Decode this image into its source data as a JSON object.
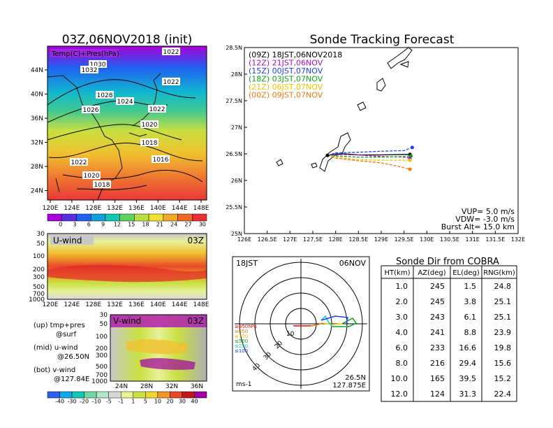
{
  "left_title": "03Z,06NOV2018 (init)",
  "map_label": "Temp(C)+Pres(hPa)",
  "map_xticks": [
    "120E",
    "124E",
    "128E",
    "132E",
    "136E",
    "140E",
    "144E",
    "148E"
  ],
  "map_yticks": [
    "44N",
    "40N",
    "36N",
    "32N",
    "28N",
    "24N"
  ],
  "isobars": [
    "1022",
    "1030",
    "1032",
    "1028",
    "1026",
    "1024",
    "1022",
    "1022",
    "1020",
    "1018",
    "1016",
    "1022",
    "1020",
    "1018"
  ],
  "temp_colorbar": [
    "0",
    "3",
    "6",
    "9",
    "12",
    "15",
    "18",
    "21",
    "24",
    "27",
    "30"
  ],
  "temp_colors": [
    "#a800d8",
    "#5a2ce0",
    "#2060f0",
    "#10a0e0",
    "#10c8b0",
    "#60d060",
    "#b8e040",
    "#f0e030",
    "#f0a828",
    "#f06828",
    "#e83030"
  ],
  "u_panel": {
    "title": "U-wind",
    "time": "03Z",
    "yticks": [
      "30",
      "50",
      "100",
      "200",
      "300",
      "500",
      "700",
      "1000"
    ],
    "xticks": [
      "120E",
      "124E",
      "128E",
      "132E",
      "136E",
      "140E",
      "144E",
      "148E"
    ]
  },
  "v_panel": {
    "title": "V-wind",
    "time": "03Z",
    "yticks": [
      "30",
      "50",
      "100",
      "200",
      "300",
      "500",
      "700",
      "1000"
    ],
    "xticks": [
      "24N",
      "28N",
      "32N",
      "36N"
    ]
  },
  "legend_text": [
    "(up) tmp+pres",
    "@surf",
    "(mid) u-wind",
    "@26.50N",
    "(bot) v-wind",
    "@127.84E"
  ],
  "wind_colorbar": [
    "-40",
    "-30",
    "-20",
    "-10",
    "-5",
    "-1",
    "1",
    "5",
    "10",
    "20",
    "30",
    "40"
  ],
  "wind_colors": [
    "#3060f0",
    "#10a8e8",
    "#10c8b8",
    "#70d8a8",
    "#b0e8c8",
    "#d8d8d8",
    "#e8f098",
    "#c8e040",
    "#f0d830",
    "#f09828",
    "#e84828",
    "#c01818",
    "#a000a0"
  ],
  "track_panel": {
    "title": "Sonde Tracking Forecast",
    "yticks": [
      "28.5N",
      "28N",
      "27.5N",
      "27N",
      "26.5N",
      "26N",
      "25.5N",
      "25N"
    ],
    "xticks": [
      "126E",
      "126.5E",
      "127E",
      "127.5E",
      "128E",
      "128.5E",
      "129E",
      "129.5E",
      "130E",
      "130.5E",
      "131E",
      "131.5E",
      "132E"
    ],
    "legend": [
      {
        "label": "(09Z)  18JST,06NOV2018",
        "color": "#000000"
      },
      {
        "label": "(12Z)  21JST,06NOV",
        "color": "#a010c0"
      },
      {
        "label": "(15Z)  00JST,07NOV",
        "color": "#2040f0"
      },
      {
        "label": "(18Z)  03JST,07NOV",
        "color": "#10a020"
      },
      {
        "label": "(21Z)  06JST,07NOV",
        "color": "#f0c000"
      },
      {
        "label": "(00Z)  09JST,07NOV",
        "color": "#f07810"
      }
    ],
    "params": [
      "VUP=  5.0 m/s",
      "VDW= -3.0 m/s",
      "Burst Alt=  15.0 km"
    ]
  },
  "polar_panel": {
    "left_label": "18JST",
    "right_label": "06NOV",
    "ring_labels": [
      "10",
      "20",
      "30",
      "40"
    ],
    "unit": "ms-1",
    "location": [
      "26.5N",
      "127.875E"
    ],
    "levels": [
      {
        "label": "≥850hPa",
        "color": "#e01010"
      },
      {
        "label": "≤850",
        "color": "#f07810"
      },
      {
        "label": "≤700",
        "color": "#f0c000"
      },
      {
        "label": "≤500",
        "color": "#10a020"
      },
      {
        "label": "≤250",
        "color": "#10c8c8"
      },
      {
        "label": "≤100",
        "color": "#2040f0"
      }
    ]
  },
  "sonde_table": {
    "title": "Sonde Dir from COBRA",
    "headers": [
      "HT(km)",
      "AZ(deg)",
      "EL(deg)",
      "RNG(km)"
    ],
    "rows": [
      [
        "1.0",
        "245",
        "1.5",
        "24.8"
      ],
      [
        "2.0",
        "245",
        "3.8",
        "25.1"
      ],
      [
        "3.0",
        "243",
        "6.1",
        "25.1"
      ],
      [
        "4.0",
        "241",
        "8.8",
        "23.9"
      ],
      [
        "6.0",
        "233",
        "16.6",
        "19.8"
      ],
      [
        "8.0",
        "216",
        "29.4",
        "15.6"
      ],
      [
        "10.0",
        "165",
        "39.5",
        "15.2"
      ],
      [
        "12.0",
        "124",
        "31.3",
        "22.4"
      ]
    ]
  },
  "chart_data": [
    {
      "type": "heatmap",
      "title": "03Z,06NOV2018 (init)",
      "xlabel": "",
      "ylabel": "",
      "x_range": [
        "120E",
        "150E"
      ],
      "y_range": [
        "22N",
        "48N"
      ],
      "colorbar": [
        0,
        3,
        6,
        9,
        12,
        15,
        18,
        21,
        24,
        27,
        30
      ]
    },
    {
      "type": "heatmap",
      "title": "U-wind",
      "xlabel": "",
      "ylabel": "",
      "x_range": [
        "120E",
        "150E"
      ],
      "y_range": [
        1000,
        30
      ]
    },
    {
      "type": "heatmap",
      "title": "V-wind",
      "xlabel": "",
      "ylabel": "",
      "x_range": [
        "22N",
        "38N"
      ],
      "y_range": [
        1000,
        30
      ],
      "colorbar": [
        -40,
        -30,
        -20,
        -10,
        -5,
        -1,
        1,
        5,
        10,
        20,
        30,
        40
      ]
    },
    {
      "type": "line",
      "title": "Sonde Tracking Forecast",
      "xlim": [
        126,
        132
      ],
      "ylim": [
        25,
        28.5
      ],
      "series": [
        {
          "name": "(09Z)  18JST,06NOV2018",
          "x": [
            127.82,
            128.0,
            128.2,
            128.5,
            129.0,
            129.5,
            129.63
          ],
          "y": [
            26.47,
            26.5,
            26.5,
            26.48,
            26.48,
            26.49,
            26.49
          ]
        },
        {
          "name": "(12Z)  21JST,06NOV",
          "x": [
            127.82,
            128.0,
            128.5,
            129.0,
            129.5,
            129.63
          ],
          "y": [
            26.47,
            26.49,
            26.48,
            26.45,
            26.44,
            26.42
          ]
        },
        {
          "name": "(15Z)  00JST,07NOV",
          "x": [
            127.82,
            128.0,
            128.5,
            129.0,
            129.5,
            129.68
          ],
          "y": [
            26.47,
            26.52,
            26.53,
            26.55,
            26.56,
            26.62
          ]
        },
        {
          "name": "(18Z)  03JST,07NOV",
          "x": [
            127.82,
            128.0,
            128.5,
            129.0,
            129.5,
            129.65
          ],
          "y": [
            26.47,
            26.46,
            26.44,
            26.44,
            26.45,
            26.46
          ]
        },
        {
          "name": "(21Z)  06JST,07NOV",
          "x": [
            127.82,
            128.0,
            128.5,
            129.0,
            129.5,
            129.63
          ],
          "y": [
            26.47,
            26.44,
            26.39,
            26.38,
            26.38,
            26.38
          ]
        },
        {
          "name": "(00Z)  09JST,07NOV",
          "x": [
            127.82,
            128.0,
            128.5,
            129.0,
            129.3,
            129.63
          ],
          "y": [
            26.47,
            26.42,
            26.37,
            26.33,
            26.28,
            26.21
          ]
        }
      ]
    },
    {
      "type": "table",
      "title": "Sonde Dir from COBRA",
      "columns": [
        "HT(km)",
        "AZ(deg)",
        "EL(deg)",
        "RNG(km)"
      ],
      "rows": [
        [
          1.0,
          245,
          1.5,
          24.8
        ],
        [
          2.0,
          245,
          3.8,
          25.1
        ],
        [
          3.0,
          243,
          6.1,
          25.1
        ],
        [
          4.0,
          241,
          8.8,
          23.9
        ],
        [
          6.0,
          233,
          16.6,
          19.8
        ],
        [
          8.0,
          216,
          29.4,
          15.6
        ],
        [
          10.0,
          165,
          39.5,
          15.2
        ],
        [
          12.0,
          124,
          31.3,
          22.4
        ]
      ]
    }
  ]
}
